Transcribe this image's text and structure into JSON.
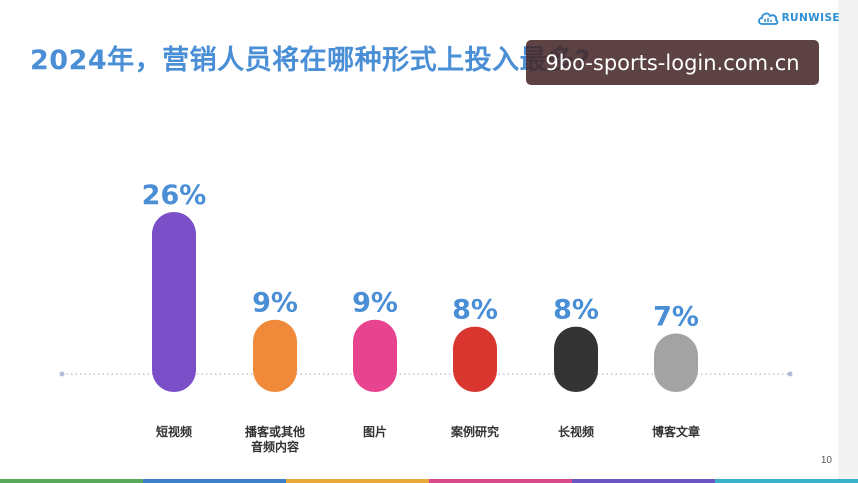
{
  "slide": {
    "title": "2024年，营销人员将在哪种形式上投入最多?",
    "logo_text": "RUNWISE",
    "page_number": "10",
    "watermark": "9bo-sports-login.com.cn"
  },
  "chart_data": {
    "type": "bar",
    "categories": [
      [
        "短视频"
      ],
      [
        "播客或其他",
        "音频内容"
      ],
      [
        "图片"
      ],
      [
        "案例研究"
      ],
      [
        "长视频"
      ],
      [
        "博客文章"
      ]
    ],
    "values": [
      26,
      9,
      9,
      8,
      8,
      7
    ],
    "value_labels": [
      "26%",
      "9%",
      "9%",
      "8%",
      "8%",
      "7%"
    ],
    "colors": [
      "#7b4fc8",
      "#f08a3a",
      "#e8438e",
      "#d9362f",
      "#333333",
      "#a3a3a3"
    ],
    "label_color": "#4a8fd6",
    "unit": "%",
    "grid": false,
    "baseline": "dotted"
  },
  "footer_colors": [
    "#5aa85a",
    "#3d7fc9",
    "#e8a93a",
    "#d94a8a",
    "#6a55c4",
    "#3ab0c9"
  ]
}
